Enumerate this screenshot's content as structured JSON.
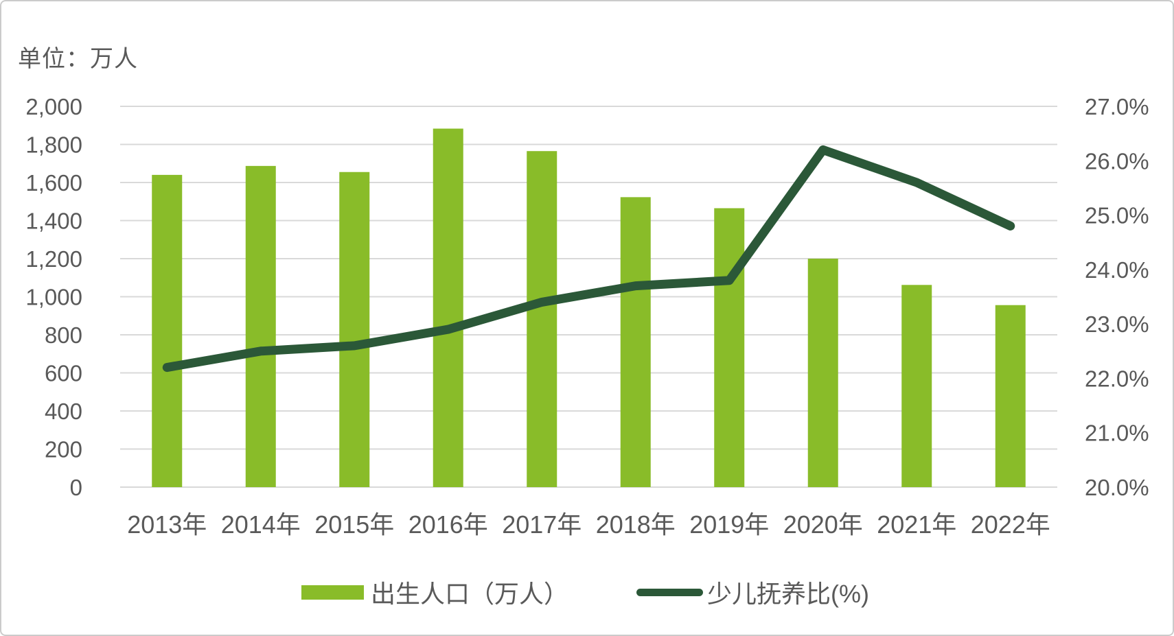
{
  "title": {
    "unit_label": "单位：万人"
  },
  "colors": {
    "bar": "#89BC29",
    "line": "#2B5838",
    "grid": "#D9D9D9",
    "text": "#595959",
    "frame_border": "#CBCBCB",
    "background": "#FFFFFF"
  },
  "chart_data": {
    "type": "bar",
    "subtype": "combo-bar-line",
    "title": "单位：万人",
    "categories": [
      "2013年",
      "2014年",
      "2015年",
      "2016年",
      "2017年",
      "2018年",
      "2019年",
      "2020年",
      "2021年",
      "2022年"
    ],
    "series": [
      {
        "name": "出生人口（万人）",
        "type": "bar",
        "axis": "left",
        "color": "#89BC29",
        "values": [
          1640,
          1687,
          1655,
          1883,
          1765,
          1523,
          1465,
          1200,
          1062,
          956
        ]
      },
      {
        "name": "少儿抚养比(%)",
        "type": "line",
        "axis": "right",
        "color": "#2B5838",
        "values": [
          22.2,
          22.5,
          22.6,
          22.9,
          23.4,
          23.7,
          23.8,
          26.2,
          25.6,
          24.8
        ]
      }
    ],
    "left_axis": {
      "min": 0,
      "max": 2000,
      "step": 200,
      "tick_labels": [
        "0",
        "200",
        "400",
        "600",
        "800",
        "1,000",
        "1,200",
        "1,400",
        "1,600",
        "1,800",
        "2,000"
      ]
    },
    "right_axis": {
      "min": 20,
      "max": 27,
      "step": 1,
      "tick_labels": [
        "20.0%",
        "21.0%",
        "22.0%",
        "23.0%",
        "24.0%",
        "25.0%",
        "26.0%",
        "27.0%"
      ]
    },
    "grid": true,
    "legend_position": "bottom",
    "legend": [
      {
        "label": "出生人口（万人）",
        "swatch": "bar"
      },
      {
        "label": "少儿抚养比(%)",
        "swatch": "line"
      }
    ]
  }
}
